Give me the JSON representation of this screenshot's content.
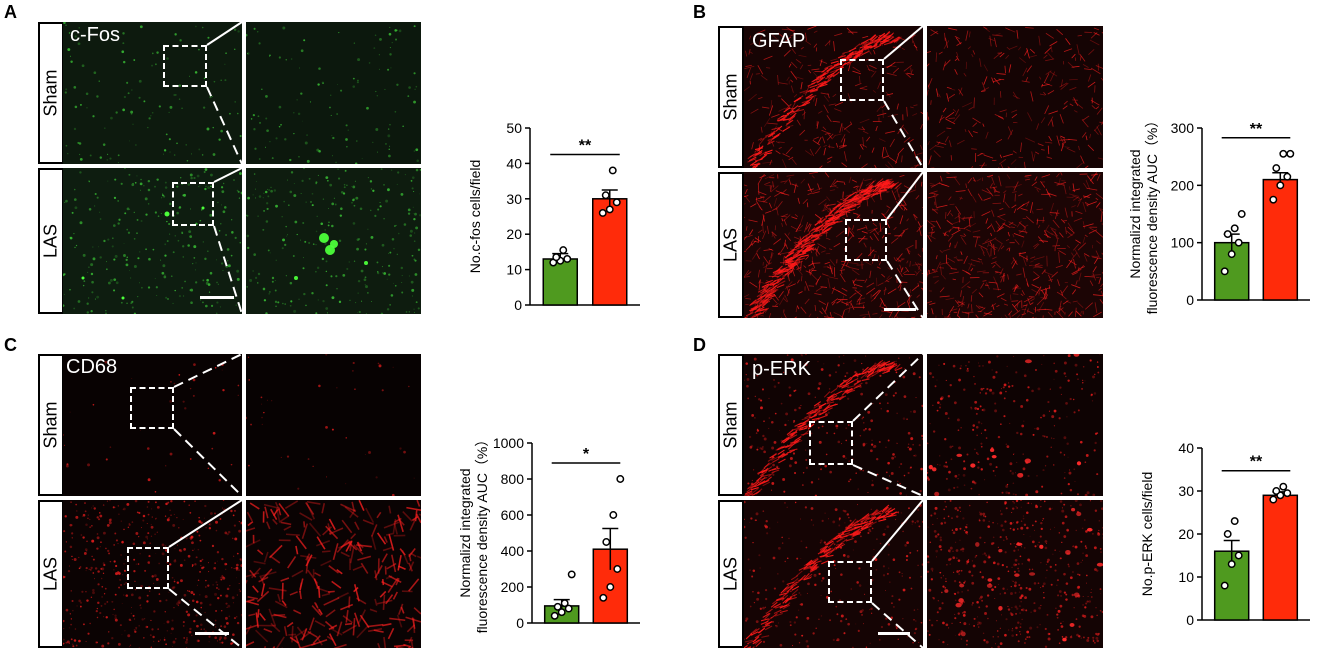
{
  "panels": [
    {
      "letter": "A",
      "stain": "c-Fos",
      "rows": [
        "Sham",
        "LAS"
      ],
      "color": "#3fae3a",
      "chart_data": {
        "type": "bar",
        "categories": [
          "Sham",
          "LAS"
        ],
        "values": [
          13,
          30
        ],
        "errors": [
          1.5,
          2.5
        ],
        "points": [
          [
            12,
            12.5,
            13,
            13.5,
            15.5
          ],
          [
            26,
            27,
            29,
            31,
            38
          ]
        ],
        "bar_colors": [
          "#4f9a1f",
          "#ff2b0a"
        ],
        "ylabel": "No.c-fos cells/field",
        "ylim": [
          0,
          50
        ],
        "yticks": [
          "0",
          "10",
          "20",
          "30",
          "40",
          "50"
        ],
        "significance": "**"
      }
    },
    {
      "letter": "B",
      "stain": "GFAP",
      "rows": [
        "Sham",
        "LAS"
      ],
      "color": "#e0231c",
      "chart_data": {
        "type": "bar",
        "categories": [
          "Sham",
          "LAS"
        ],
        "values": [
          100,
          210
        ],
        "errors": [
          15,
          12
        ],
        "points": [
          [
            50,
            80,
            100,
            115,
            125,
            150
          ],
          [
            175,
            200,
            215,
            230,
            255,
            255
          ]
        ],
        "bar_colors": [
          "#4f9a1f",
          "#ff2b0a"
        ],
        "ylabel": "Normalizd integrated fluorescence density AUC (%)",
        "ylabel_lines": [
          "Normalizd integrated",
          "fluorescence density AUC（%）"
        ],
        "ylim": [
          0,
          300
        ],
        "yticks": [
          "0",
          "100",
          "200",
          "300"
        ],
        "significance": "**"
      }
    },
    {
      "letter": "C",
      "stain": "CD68",
      "rows": [
        "Sham",
        "LAS"
      ],
      "color": "#e0231c",
      "chart_data": {
        "type": "bar",
        "categories": [
          "Sham",
          "LAS"
        ],
        "values": [
          95,
          410
        ],
        "errors": [
          35,
          115
        ],
        "points": [
          [
            40,
            60,
            80,
            90,
            110,
            270
          ],
          [
            140,
            200,
            300,
            450,
            600,
            800
          ]
        ],
        "bar_colors": [
          "#4f9a1f",
          "#ff2b0a"
        ],
        "ylabel": "Normalizd integrated fluorescence density AUC (%)",
        "ylabel_lines": [
          "Normalizd integrated",
          "fluorescence density AUC（%）"
        ],
        "ylim": [
          0,
          1000
        ],
        "yticks": [
          "0",
          "200",
          "400",
          "600",
          "800",
          "1000"
        ],
        "significance": "*"
      }
    },
    {
      "letter": "D",
      "stain": "p-ERK",
      "rows": [
        "Sham",
        "LAS"
      ],
      "color": "#e0231c",
      "chart_data": {
        "type": "bar",
        "categories": [
          "Sham",
          "LAS"
        ],
        "values": [
          16,
          29
        ],
        "errors": [
          2.5,
          0.8
        ],
        "points": [
          [
            8,
            13,
            15,
            20,
            23
          ],
          [
            28,
            29,
            29.5,
            30,
            31
          ]
        ],
        "bar_colors": [
          "#4f9a1f",
          "#ff2b0a"
        ],
        "ylabel": "No.p-ERK cells/field",
        "ylim": [
          0,
          40
        ],
        "yticks": [
          "0",
          "10",
          "20",
          "30",
          "40"
        ],
        "significance": "**"
      }
    }
  ]
}
